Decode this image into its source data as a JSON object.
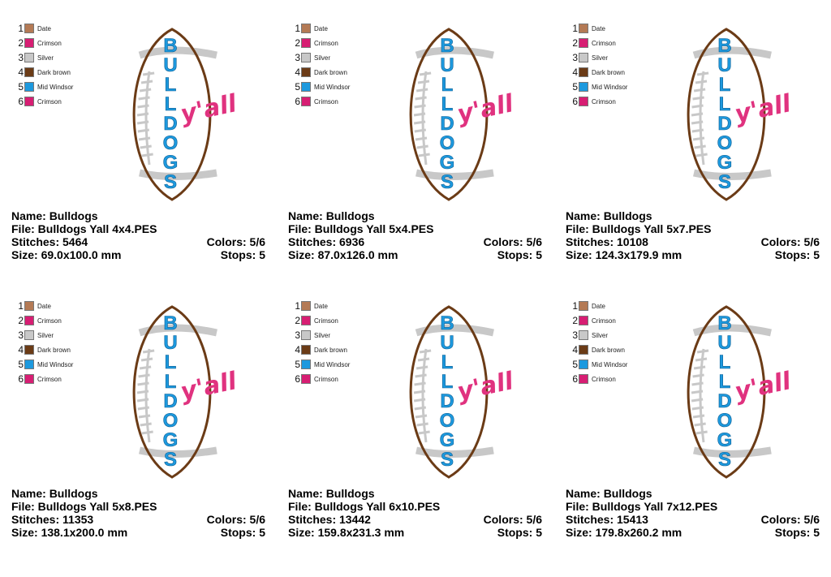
{
  "palette": [
    {
      "num": "1",
      "name": "Date",
      "color": "#b47a55"
    },
    {
      "num": "2",
      "name": "Crimson",
      "color": "#d71e73"
    },
    {
      "num": "3",
      "name": "Silver",
      "color": "#c8c8c8"
    },
    {
      "num": "4",
      "name": "Dark brown",
      "color": "#6b3b16"
    },
    {
      "num": "5",
      "name": "Mid Windsor",
      "color": "#1d99de"
    },
    {
      "num": "6",
      "name": "Crimson",
      "color": "#d71e73"
    }
  ],
  "design": {
    "word": "BULLDOGS",
    "script": "y'all",
    "football_outline": "#6b3b16",
    "lace_color": "#c8c8c8",
    "letter_color": "#1d99de",
    "script_color": "#e0327f"
  },
  "labels": {
    "name": "Name:",
    "file": "File:",
    "stitches": "Stitches:",
    "size": "Size:",
    "colors": "Colors:",
    "stops": "Stops:"
  },
  "sheets": [
    {
      "name": "Bulldogs",
      "file": "Bulldogs Yall 4x4.PES",
      "stitches": "5464",
      "size": "69.0x100.0 mm",
      "colors": "5/6",
      "stops": "5"
    },
    {
      "name": "Bulldogs",
      "file": "Bulldogs Yall 5x4.PES",
      "stitches": "6936",
      "size": "87.0x126.0 mm",
      "colors": "5/6",
      "stops": "5"
    },
    {
      "name": "Bulldogs",
      "file": "Bulldogs Yall 5x7.PES",
      "stitches": "10108",
      "size": "124.3x179.9 mm",
      "colors": "5/6",
      "stops": "5"
    },
    {
      "name": "Bulldogs",
      "file": "Bulldogs Yall 5x8.PES",
      "stitches": "11353",
      "size": "138.1x200.0 mm",
      "colors": "5/6",
      "stops": "5"
    },
    {
      "name": "Bulldogs",
      "file": "Bulldogs Yall 6x10.PES",
      "stitches": "13442",
      "size": "159.8x231.3 mm",
      "colors": "5/6",
      "stops": "5"
    },
    {
      "name": "Bulldogs",
      "file": "Bulldogs Yall 7x12.PES",
      "stitches": "15413",
      "size": "179.8x260.2 mm",
      "colors": "5/6",
      "stops": "5"
    }
  ]
}
